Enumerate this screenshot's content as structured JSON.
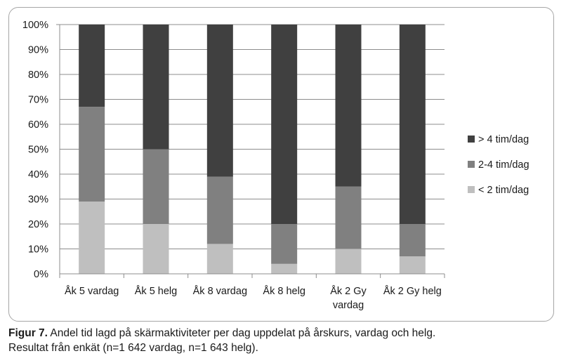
{
  "chart_data": {
    "type": "bar",
    "stacked": true,
    "categories": [
      "Åk 5 vardag",
      "Åk 5 helg",
      "Åk 8 vardag",
      "Åk 8 helg",
      "Åk 2 Gy vardag",
      "Åk 2 Gy helg"
    ],
    "category_lines": [
      [
        "Åk 5 vardag"
      ],
      [
        "Åk 5 helg"
      ],
      [
        "Åk 8 vardag"
      ],
      [
        "Åk 8 helg"
      ],
      [
        "Åk 2 Gy",
        "vardag"
      ],
      [
        "Åk 2 Gy helg"
      ]
    ],
    "series": [
      {
        "name": "< 2 tim/dag",
        "color": "#bfbfbf",
        "values": [
          29,
          20,
          12,
          4,
          10,
          7
        ]
      },
      {
        "name": "2-4 tim/dag",
        "color": "#808080",
        "values": [
          38,
          30,
          27,
          16,
          25,
          13
        ]
      },
      {
        "name": "> 4 tim/dag",
        "color": "#404040",
        "values": [
          33,
          50,
          61,
          80,
          65,
          80
        ]
      }
    ],
    "y_ticks": [
      "0%",
      "10%",
      "20%",
      "30%",
      "40%",
      "50%",
      "60%",
      "70%",
      "80%",
      "90%",
      "100%"
    ],
    "ylim": [
      0,
      100
    ],
    "grid": true,
    "legend_position": "right",
    "legend_order": [
      "> 4 tim/dag",
      "2-4 tim/dag",
      "< 2 tim/dag"
    ]
  },
  "caption": {
    "label": "Figur 7.",
    "text_line1": " Andel tid lagd på skärmaktiviteter per dag uppdelat på årskurs, vardag och helg.",
    "text_line2": "Resultat från enkät (n=1 642 vardag, n=1 643 helg)."
  }
}
